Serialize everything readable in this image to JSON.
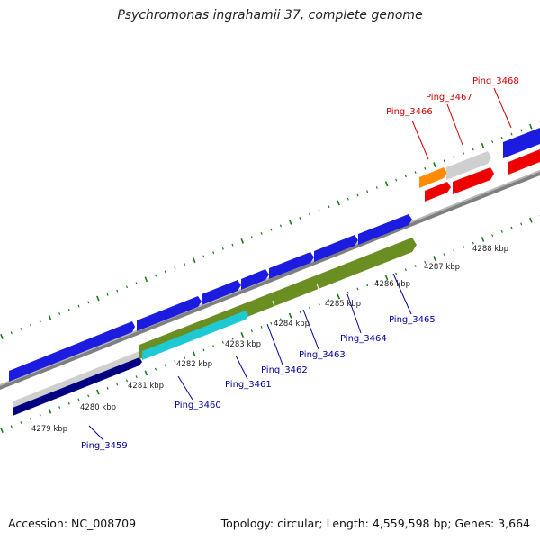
{
  "title": "Psychromonas ingrahamii 37, complete genome",
  "footer": {
    "accession": "Accession: NC_008709",
    "topology": "Topology: circular; Length: 4,559,598 bp; Genes: 3,664"
  },
  "kbp_ticks": [
    "4279 kbp",
    "4280 kbp",
    "4281 kbp",
    "4282 kbp",
    "4283 kbp",
    "4284 kbp",
    "4285 kbp",
    "4286 kbp",
    "4287 kbp",
    "4288 kbp"
  ],
  "gene_labels": [
    "Ping_3459",
    "Ping_3460",
    "Ping_3461",
    "Ping_3462",
    "Ping_3463",
    "Ping_3464",
    "Ping_3465",
    "Ping_3466",
    "Ping_3467",
    "Ping_3468"
  ],
  "colors": {
    "backbone": "#7f7f7f",
    "tick": "#1b7a1b",
    "cds_blue": "#1c1ce0",
    "cds_red": "#ee0000",
    "feature_olive": "#6b8e23",
    "feature_cyan": "#1fc9d4",
    "feature_navy": "#000080",
    "feature_orange": "#ff8c00",
    "feature_gray": "#cfcfcf",
    "label_blue": "#00009e",
    "label_red": "#cc0000"
  }
}
